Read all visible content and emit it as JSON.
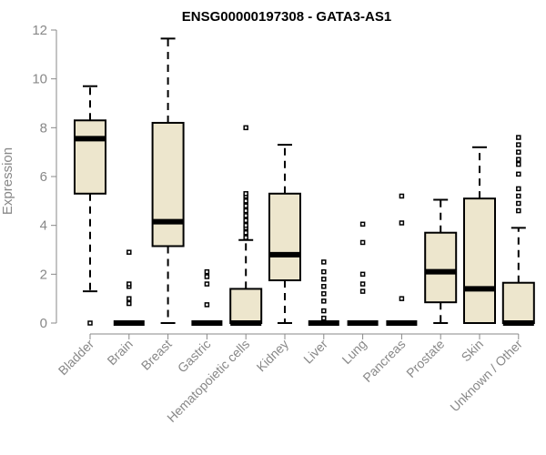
{
  "chart_data": {
    "type": "boxplot",
    "title": "ENSG00000197308 - GATA3-AS1",
    "xlabel": "",
    "ylabel": "Expression",
    "ylim": [
      0,
      12
    ],
    "yticks": [
      0,
      2,
      4,
      6,
      8,
      10,
      12
    ],
    "categories": [
      "Bladder",
      "Brain",
      "Breast",
      "Gastric",
      "Hematopoietic cells",
      "Kidney",
      "Liver",
      "Lung",
      "Pancreas",
      "Prostate",
      "Skin",
      "Unknown / Other"
    ],
    "series": [
      {
        "name": "Bladder",
        "min": 1.3,
        "q1": 5.3,
        "median": 7.55,
        "q3": 8.3,
        "max": 9.7,
        "outliers": [
          0.0
        ]
      },
      {
        "name": "Brain",
        "min": 0.0,
        "q1": 0.0,
        "median": 0.0,
        "q3": 0.0,
        "max": 0.0,
        "outliers": [
          0.8,
          1.0,
          1.5,
          1.6,
          2.9
        ]
      },
      {
        "name": "Breast",
        "min": 0.0,
        "q1": 3.15,
        "median": 4.15,
        "q3": 8.2,
        "max": 11.65,
        "outliers": []
      },
      {
        "name": "Gastric",
        "min": 0.0,
        "q1": 0.0,
        "median": 0.0,
        "q3": 0.0,
        "max": 0.0,
        "outliers": [
          0.75,
          1.6,
          1.9,
          2.1
        ]
      },
      {
        "name": "Hematopoietic cells",
        "min": 0.0,
        "q1": 0.0,
        "median": 0.0,
        "q3": 1.4,
        "max": 3.4,
        "outliers": [
          3.5,
          3.7,
          3.9,
          4.0,
          4.2,
          4.4,
          4.6,
          4.8,
          5.0,
          5.2,
          5.3,
          8.0
        ]
      },
      {
        "name": "Kidney",
        "min": 0.0,
        "q1": 1.75,
        "median": 2.8,
        "q3": 5.3,
        "max": 7.3,
        "outliers": []
      },
      {
        "name": "Liver",
        "min": 0.0,
        "q1": 0.0,
        "median": 0.0,
        "q3": 0.0,
        "max": 0.0,
        "outliers": [
          0.2,
          0.5,
          0.9,
          1.2,
          1.5,
          1.8,
          2.1,
          2.5
        ]
      },
      {
        "name": "Lung",
        "min": 0.0,
        "q1": 0.0,
        "median": 0.0,
        "q3": 0.0,
        "max": 0.0,
        "outliers": [
          1.3,
          1.6,
          2.0,
          3.3,
          4.05
        ]
      },
      {
        "name": "Pancreas",
        "min": 0.0,
        "q1": 0.0,
        "median": 0.0,
        "q3": 0.0,
        "max": 0.0,
        "outliers": [
          1.0,
          4.1,
          5.2
        ]
      },
      {
        "name": "Prostate",
        "min": 0.0,
        "q1": 0.85,
        "median": 2.1,
        "q3": 3.7,
        "max": 5.05,
        "outliers": []
      },
      {
        "name": "Skin",
        "min": 0.0,
        "q1": 0.0,
        "median": 1.4,
        "q3": 5.1,
        "max": 7.2,
        "outliers": []
      },
      {
        "name": "Unknown / Other",
        "min": 0.0,
        "q1": 0.0,
        "median": 0.0,
        "q3": 1.65,
        "max": 3.9,
        "outliers": [
          4.6,
          4.9,
          5.2,
          5.5,
          6.1,
          6.5,
          6.7,
          7.0,
          7.3,
          7.6
        ]
      }
    ],
    "grid": false,
    "legend": "none"
  }
}
